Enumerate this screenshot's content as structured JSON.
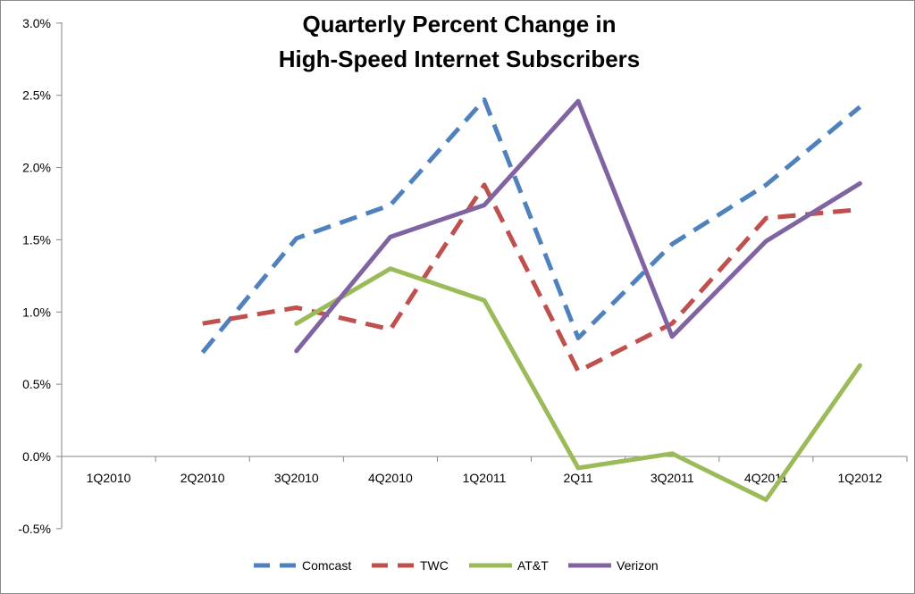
{
  "chart_data": {
    "type": "line",
    "title_lines": [
      "Quarterly Percent Change in",
      "High-Speed Internet Subscribers"
    ],
    "categories": [
      "1Q2010",
      "2Q2010",
      "3Q2010",
      "4Q2010",
      "1Q2011",
      "2Q11",
      "3Q2011",
      "4Q2011",
      "1Q2012"
    ],
    "y_ticks": [
      "3.0%",
      "2.5%",
      "2.0%",
      "1.5%",
      "1.0%",
      "0.5%",
      "0.0%",
      "-0.5%"
    ],
    "ylim": [
      -0.5,
      3.0
    ],
    "grid": false,
    "legend_position": "bottom",
    "series": [
      {
        "name": "Comcast",
        "color": "#4F81BD",
        "dash": true,
        "values": [
          null,
          0.72,
          1.51,
          1.74,
          2.47,
          0.82,
          1.47,
          1.88,
          2.42
        ]
      },
      {
        "name": "TWC",
        "color": "#C0504D",
        "dash": true,
        "values": [
          null,
          0.92,
          1.03,
          0.88,
          1.88,
          0.59,
          0.92,
          1.65,
          1.71
        ]
      },
      {
        "name": "AT&T",
        "color": "#9BBB59",
        "dash": false,
        "values": [
          null,
          null,
          0.92,
          1.3,
          1.08,
          -0.08,
          0.02,
          -0.3,
          0.63
        ]
      },
      {
        "name": "Verizon",
        "color": "#8064A2",
        "dash": false,
        "values": [
          null,
          null,
          0.73,
          1.52,
          1.74,
          2.46,
          0.83,
          1.49,
          1.89
        ]
      }
    ]
  }
}
